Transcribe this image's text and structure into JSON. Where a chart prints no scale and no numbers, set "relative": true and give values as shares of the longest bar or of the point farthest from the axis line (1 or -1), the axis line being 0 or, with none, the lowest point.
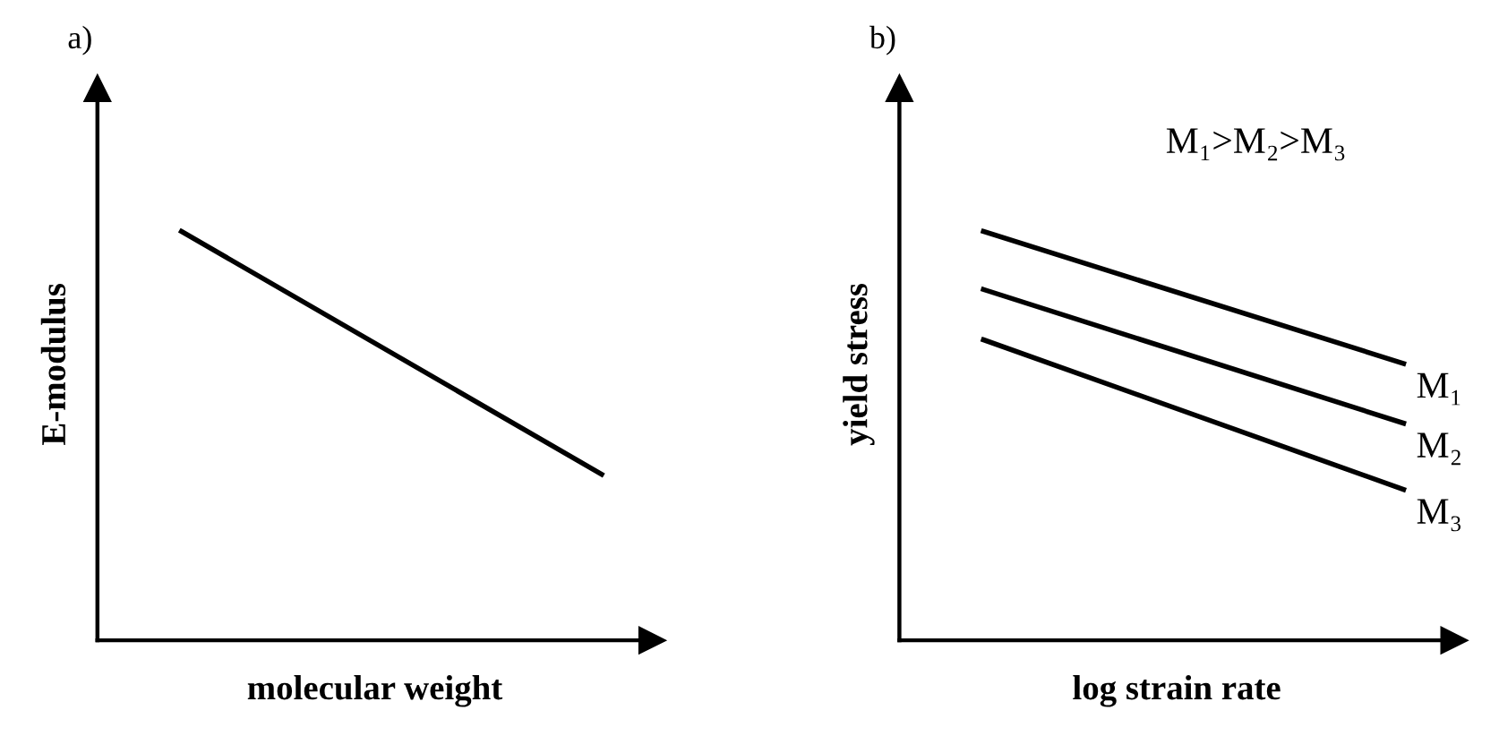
{
  "chart_data": [
    {
      "type": "line",
      "title": "a)",
      "xlabel": "molecular weight",
      "ylabel": "E-modulus",
      "relative": true,
      "categories": [
        null,
        null
      ],
      "series": [
        {
          "color": "#000000",
          "values": [
            1,
            0.406
          ]
        }
      ],
      "legend": false,
      "marker": "none",
      "line_style": "solid"
    },
    {
      "type": "line",
      "title": "b)",
      "xlabel": "log strain rate",
      "ylabel": "yield stress",
      "relative": true,
      "categories": [
        null,
        null
      ],
      "annotations": [
        "M₁>M₂>M₃"
      ],
      "series": [
        {
          "name": "M₁",
          "color": "#000000",
          "values": [
            1,
            0.677
          ]
        },
        {
          "name": "M₂",
          "color": "#000000",
          "values": [
            0.858,
            0.531
          ]
        },
        {
          "name": "M₃",
          "color": "#000000",
          "values": [
            0.735,
            0.369
          ]
        }
      ],
      "legend": false,
      "marker": "none",
      "line_style": "solid"
    }
  ]
}
